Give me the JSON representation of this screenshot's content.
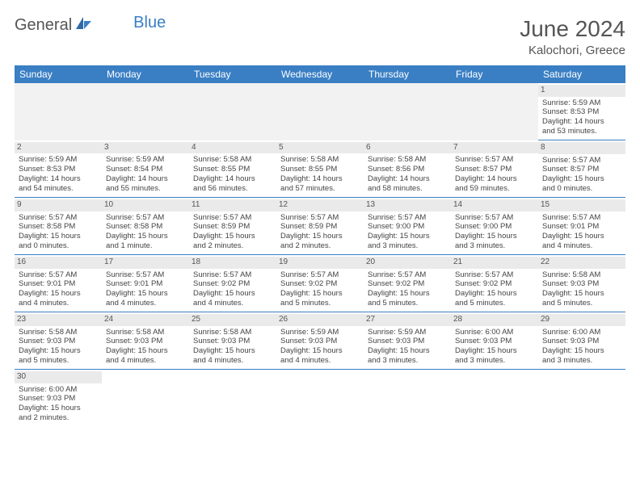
{
  "logo": {
    "general": "General",
    "blue": "Blue"
  },
  "title": "June 2024",
  "location": "Kalochori, Greece",
  "colors": {
    "header_bg": "#3a7fc4",
    "header_fg": "#ffffff",
    "daynum_bg": "#eaeaea",
    "border": "#3a7fc4"
  },
  "dayHeaders": [
    "Sunday",
    "Monday",
    "Tuesday",
    "Wednesday",
    "Thursday",
    "Friday",
    "Saturday"
  ],
  "weeks": [
    [
      null,
      null,
      null,
      null,
      null,
      null,
      {
        "n": "1",
        "sr": "Sunrise: 5:59 AM",
        "ss": "Sunset: 8:53 PM",
        "d1": "Daylight: 14 hours",
        "d2": "and 53 minutes."
      }
    ],
    [
      {
        "n": "2",
        "sr": "Sunrise: 5:59 AM",
        "ss": "Sunset: 8:53 PM",
        "d1": "Daylight: 14 hours",
        "d2": "and 54 minutes."
      },
      {
        "n": "3",
        "sr": "Sunrise: 5:59 AM",
        "ss": "Sunset: 8:54 PM",
        "d1": "Daylight: 14 hours",
        "d2": "and 55 minutes."
      },
      {
        "n": "4",
        "sr": "Sunrise: 5:58 AM",
        "ss": "Sunset: 8:55 PM",
        "d1": "Daylight: 14 hours",
        "d2": "and 56 minutes."
      },
      {
        "n": "5",
        "sr": "Sunrise: 5:58 AM",
        "ss": "Sunset: 8:55 PM",
        "d1": "Daylight: 14 hours",
        "d2": "and 57 minutes."
      },
      {
        "n": "6",
        "sr": "Sunrise: 5:58 AM",
        "ss": "Sunset: 8:56 PM",
        "d1": "Daylight: 14 hours",
        "d2": "and 58 minutes."
      },
      {
        "n": "7",
        "sr": "Sunrise: 5:57 AM",
        "ss": "Sunset: 8:57 PM",
        "d1": "Daylight: 14 hours",
        "d2": "and 59 minutes."
      },
      {
        "n": "8",
        "sr": "Sunrise: 5:57 AM",
        "ss": "Sunset: 8:57 PM",
        "d1": "Daylight: 15 hours",
        "d2": "and 0 minutes."
      }
    ],
    [
      {
        "n": "9",
        "sr": "Sunrise: 5:57 AM",
        "ss": "Sunset: 8:58 PM",
        "d1": "Daylight: 15 hours",
        "d2": "and 0 minutes."
      },
      {
        "n": "10",
        "sr": "Sunrise: 5:57 AM",
        "ss": "Sunset: 8:58 PM",
        "d1": "Daylight: 15 hours",
        "d2": "and 1 minute."
      },
      {
        "n": "11",
        "sr": "Sunrise: 5:57 AM",
        "ss": "Sunset: 8:59 PM",
        "d1": "Daylight: 15 hours",
        "d2": "and 2 minutes."
      },
      {
        "n": "12",
        "sr": "Sunrise: 5:57 AM",
        "ss": "Sunset: 8:59 PM",
        "d1": "Daylight: 15 hours",
        "d2": "and 2 minutes."
      },
      {
        "n": "13",
        "sr": "Sunrise: 5:57 AM",
        "ss": "Sunset: 9:00 PM",
        "d1": "Daylight: 15 hours",
        "d2": "and 3 minutes."
      },
      {
        "n": "14",
        "sr": "Sunrise: 5:57 AM",
        "ss": "Sunset: 9:00 PM",
        "d1": "Daylight: 15 hours",
        "d2": "and 3 minutes."
      },
      {
        "n": "15",
        "sr": "Sunrise: 5:57 AM",
        "ss": "Sunset: 9:01 PM",
        "d1": "Daylight: 15 hours",
        "d2": "and 4 minutes."
      }
    ],
    [
      {
        "n": "16",
        "sr": "Sunrise: 5:57 AM",
        "ss": "Sunset: 9:01 PM",
        "d1": "Daylight: 15 hours",
        "d2": "and 4 minutes."
      },
      {
        "n": "17",
        "sr": "Sunrise: 5:57 AM",
        "ss": "Sunset: 9:01 PM",
        "d1": "Daylight: 15 hours",
        "d2": "and 4 minutes."
      },
      {
        "n": "18",
        "sr": "Sunrise: 5:57 AM",
        "ss": "Sunset: 9:02 PM",
        "d1": "Daylight: 15 hours",
        "d2": "and 4 minutes."
      },
      {
        "n": "19",
        "sr": "Sunrise: 5:57 AM",
        "ss": "Sunset: 9:02 PM",
        "d1": "Daylight: 15 hours",
        "d2": "and 5 minutes."
      },
      {
        "n": "20",
        "sr": "Sunrise: 5:57 AM",
        "ss": "Sunset: 9:02 PM",
        "d1": "Daylight: 15 hours",
        "d2": "and 5 minutes."
      },
      {
        "n": "21",
        "sr": "Sunrise: 5:57 AM",
        "ss": "Sunset: 9:02 PM",
        "d1": "Daylight: 15 hours",
        "d2": "and 5 minutes."
      },
      {
        "n": "22",
        "sr": "Sunrise: 5:58 AM",
        "ss": "Sunset: 9:03 PM",
        "d1": "Daylight: 15 hours",
        "d2": "and 5 minutes."
      }
    ],
    [
      {
        "n": "23",
        "sr": "Sunrise: 5:58 AM",
        "ss": "Sunset: 9:03 PM",
        "d1": "Daylight: 15 hours",
        "d2": "and 5 minutes."
      },
      {
        "n": "24",
        "sr": "Sunrise: 5:58 AM",
        "ss": "Sunset: 9:03 PM",
        "d1": "Daylight: 15 hours",
        "d2": "and 4 minutes."
      },
      {
        "n": "25",
        "sr": "Sunrise: 5:58 AM",
        "ss": "Sunset: 9:03 PM",
        "d1": "Daylight: 15 hours",
        "d2": "and 4 minutes."
      },
      {
        "n": "26",
        "sr": "Sunrise: 5:59 AM",
        "ss": "Sunset: 9:03 PM",
        "d1": "Daylight: 15 hours",
        "d2": "and 4 minutes."
      },
      {
        "n": "27",
        "sr": "Sunrise: 5:59 AM",
        "ss": "Sunset: 9:03 PM",
        "d1": "Daylight: 15 hours",
        "d2": "and 3 minutes."
      },
      {
        "n": "28",
        "sr": "Sunrise: 6:00 AM",
        "ss": "Sunset: 9:03 PM",
        "d1": "Daylight: 15 hours",
        "d2": "and 3 minutes."
      },
      {
        "n": "29",
        "sr": "Sunrise: 6:00 AM",
        "ss": "Sunset: 9:03 PM",
        "d1": "Daylight: 15 hours",
        "d2": "and 3 minutes."
      }
    ],
    [
      {
        "n": "30",
        "sr": "Sunrise: 6:00 AM",
        "ss": "Sunset: 9:03 PM",
        "d1": "Daylight: 15 hours",
        "d2": "and 2 minutes."
      },
      null,
      null,
      null,
      null,
      null,
      null
    ]
  ]
}
